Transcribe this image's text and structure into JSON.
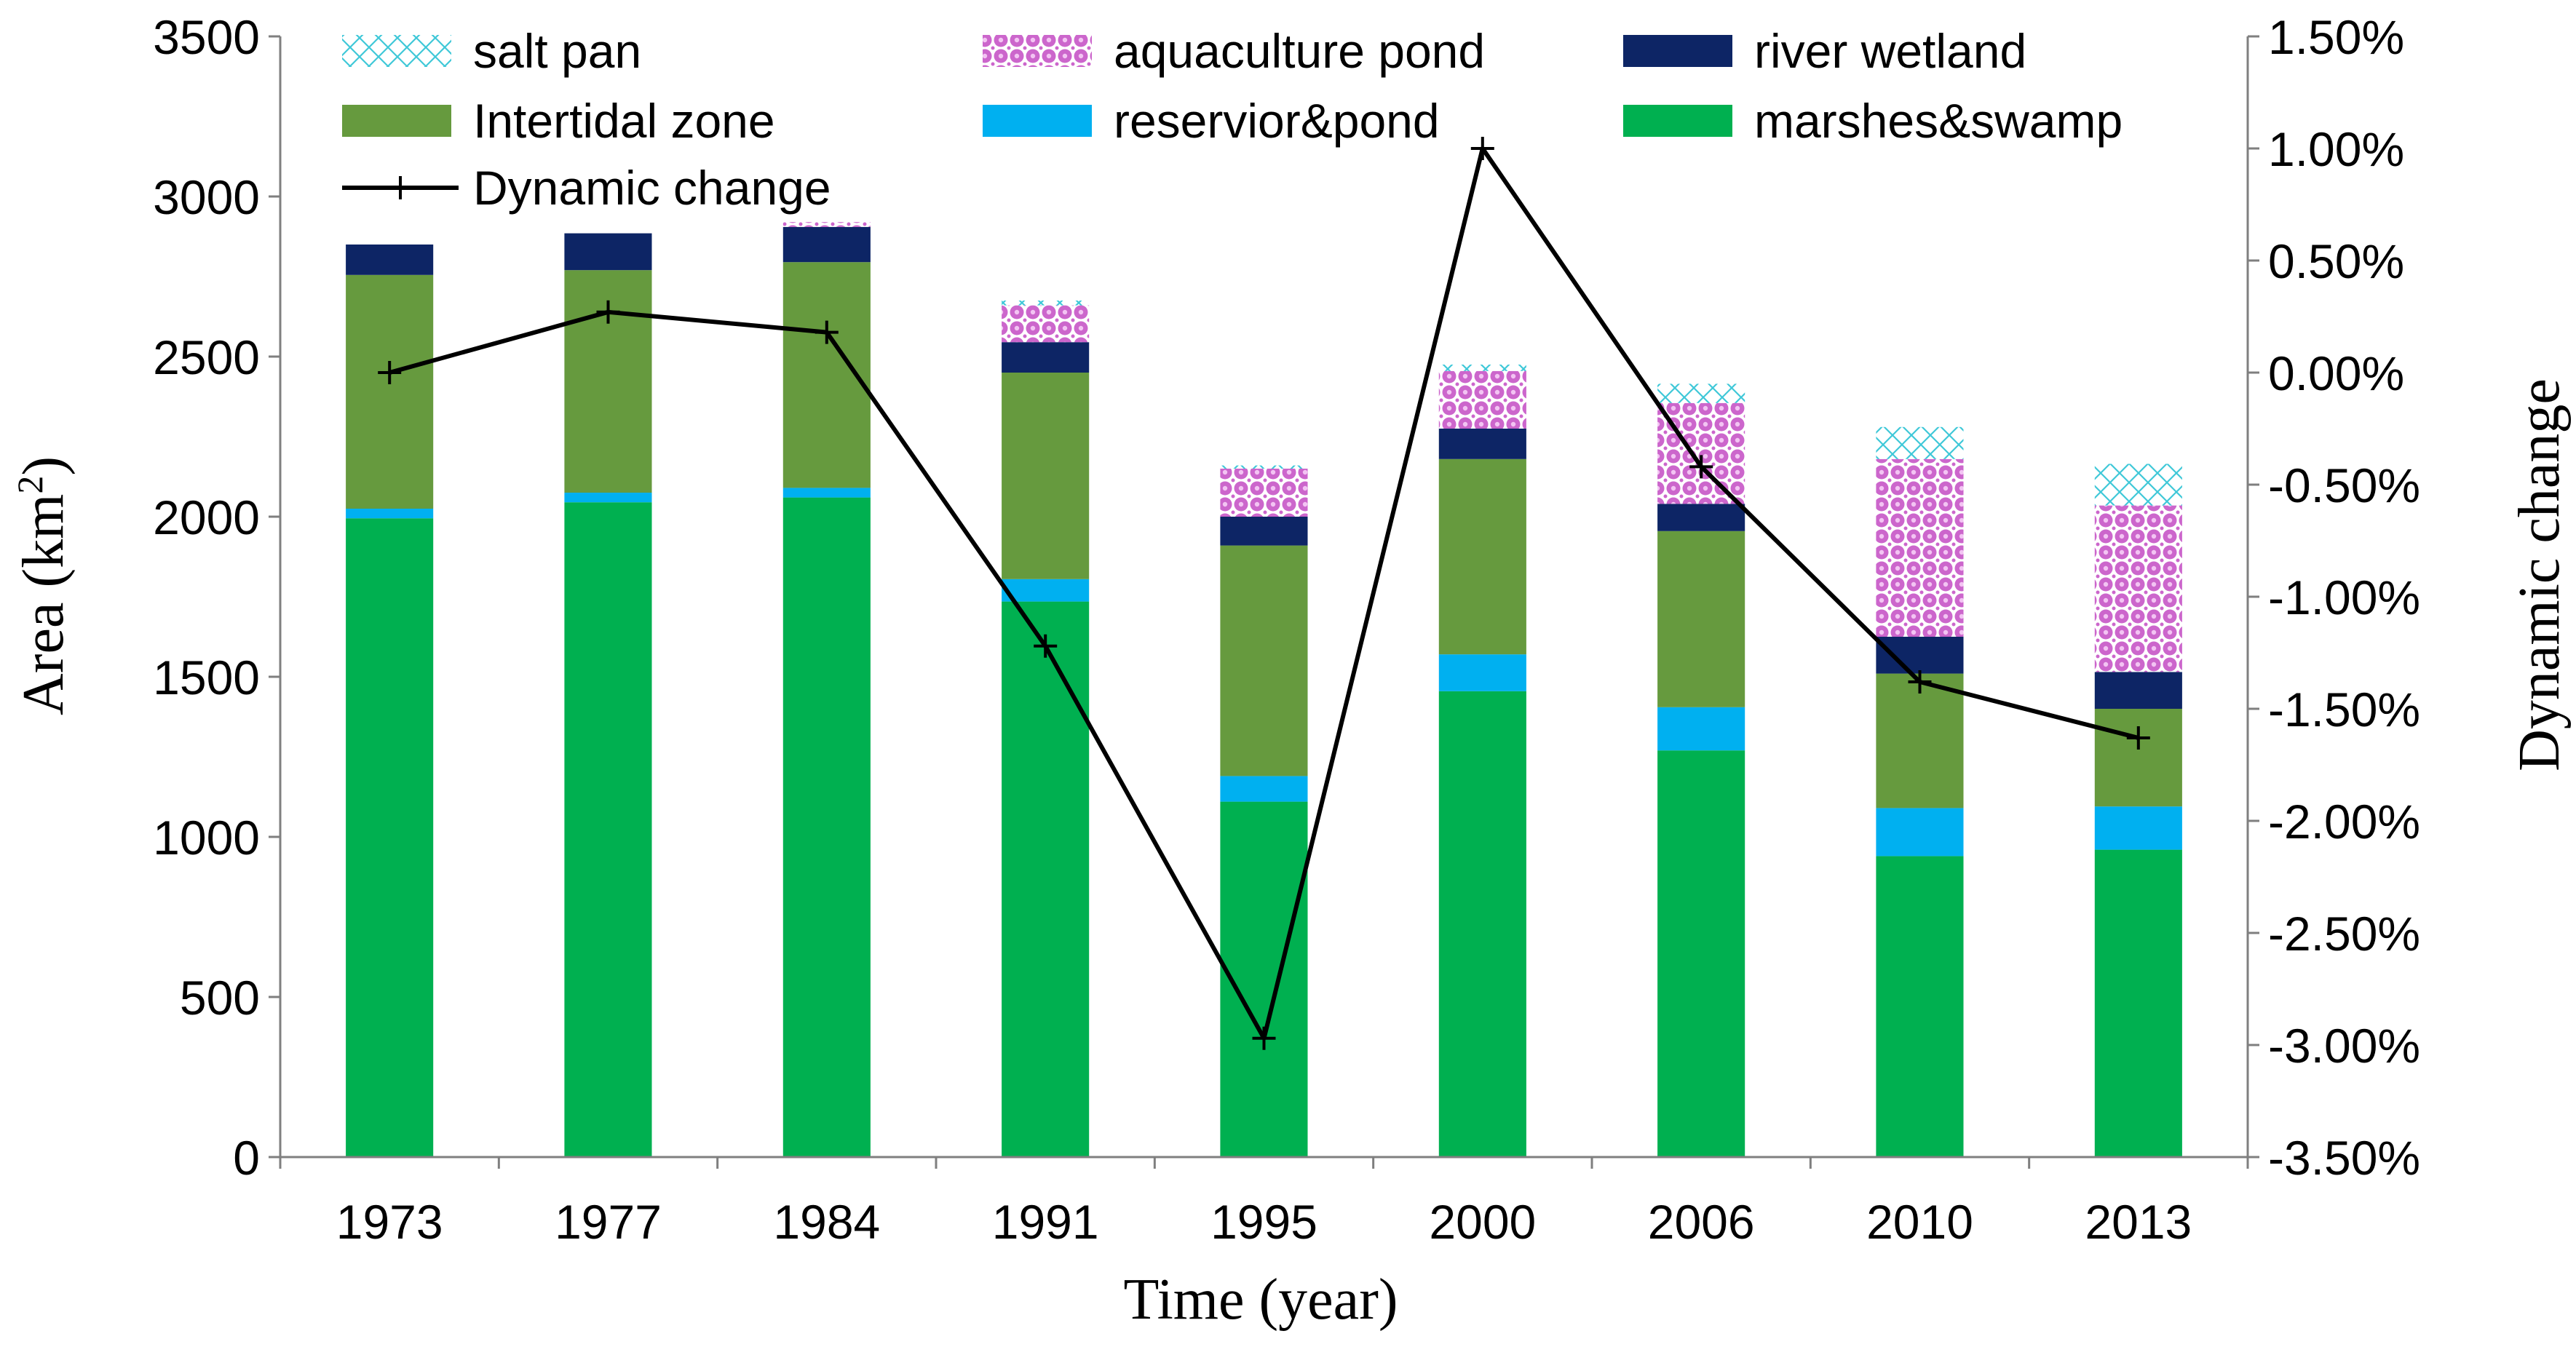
{
  "chart_data": {
    "type": "bar",
    "stacked": true,
    "xlabel": "Time (year)",
    "ylabel_text": "Area (km",
    "ylabel_sup": "2",
    "ylabel_close": ")",
    "y2label": "Dynamic change",
    "ylim": [
      0,
      3500
    ],
    "yticks": [
      0,
      500,
      1000,
      1500,
      2000,
      2500,
      3000,
      3500
    ],
    "ytick_labels": [
      "0",
      "500",
      "1000",
      "1500",
      "2000",
      "2500",
      "3000",
      "3500"
    ],
    "y2lim": [
      -3.5,
      1.5
    ],
    "y2ticks": [
      -3.5,
      -3.0,
      -2.5,
      -2.0,
      -1.5,
      -1.0,
      -0.5,
      0.0,
      0.5,
      1.0,
      1.5
    ],
    "y2tick_labels": [
      "-3.50%",
      "-3.00%",
      "-2.50%",
      "-2.00%",
      "-1.50%",
      "-1.00%",
      "-0.50%",
      "0.00%",
      "0.50%",
      "1.00%",
      "1.50%"
    ],
    "categories": [
      "1973",
      "1977",
      "1984",
      "1991",
      "1995",
      "2000",
      "2006",
      "2010",
      "2013"
    ],
    "series": [
      {
        "name": "marshes&swamp",
        "color": "#00b050",
        "pattern": "solid",
        "values": [
          1995,
          2045,
          2060,
          1735,
          1110,
          1455,
          1270,
          940,
          960
        ]
      },
      {
        "name": "reservior&pond",
        "color": "#00b0f0",
        "pattern": "solid",
        "values": [
          30,
          30,
          30,
          70,
          80,
          115,
          135,
          150,
          135
        ]
      },
      {
        "name": "Intertidal zone",
        "color": "#669a3e",
        "pattern": "solid",
        "values": [
          730,
          695,
          705,
          645,
          720,
          610,
          550,
          420,
          305
        ]
      },
      {
        "name": "river wetland",
        "color": "#0d2565",
        "pattern": "solid",
        "values": [
          95,
          115,
          110,
          95,
          90,
          95,
          85,
          115,
          115
        ]
      },
      {
        "name": "aquaculture pond",
        "color": "#cc66cc",
        "pattern": "circles",
        "values": [
          0,
          0,
          15,
          115,
          150,
          180,
          315,
          555,
          520
        ]
      },
      {
        "name": "salt pan",
        "color": "#3fc8d8",
        "pattern": "crosshatch",
        "values": [
          0,
          0,
          0,
          15,
          10,
          20,
          60,
          100,
          130
        ]
      }
    ],
    "line": {
      "name": "Dynamic change",
      "axis": "right",
      "unit": "%",
      "values": [
        0.0,
        0.27,
        0.18,
        -1.22,
        -2.97,
        1.0,
        -0.42,
        -1.38,
        -1.63
      ]
    },
    "legend": [
      [
        "salt pan",
        "aquaculture pond",
        "river wetland"
      ],
      [
        "Intertidal zone",
        "reservior&pond",
        "marshes&swamp"
      ],
      [
        "Dynamic change"
      ]
    ],
    "legend_position": "top-left"
  }
}
